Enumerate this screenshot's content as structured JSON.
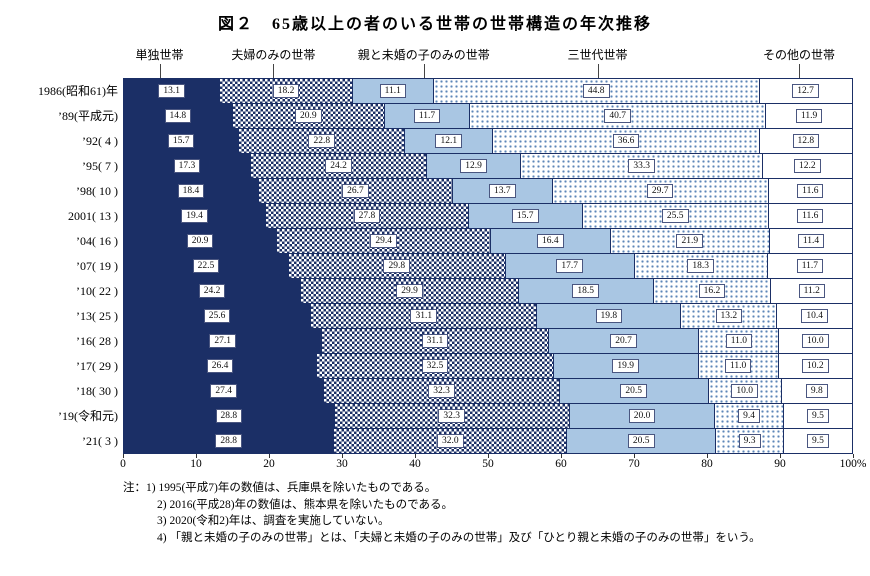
{
  "title": "図２　65歳以上の者のいる世帯の世帯構造の年次推移",
  "chart_data": {
    "type": "bar",
    "variant": "stacked-horizontal-100percent",
    "unit": "%",
    "title": "図２　65歳以上の者のいる世帯の世帯構造の年次推移",
    "xlim": [
      0,
      100
    ],
    "grid": false,
    "legend_position": "top-as-column-headers",
    "categories": [
      "1986(昭和61)年",
      "’89(平成元)",
      "’92(  4 )",
      "’95(  7 )",
      "’98( 10 )",
      "2001( 13 )",
      "’04( 16 )",
      "’07( 19 )",
      "’10( 22 )",
      "’13( 25 )",
      "’16( 28 )",
      "’17( 29 )",
      "’18( 30 )",
      "’19(令和元)",
      "’21(  3 )"
    ],
    "series": [
      {
        "name": "単独世帯",
        "pattern": "solid-navy",
        "values": [
          13.1,
          14.8,
          15.7,
          17.3,
          18.4,
          19.4,
          20.9,
          22.5,
          24.2,
          25.6,
          27.1,
          26.4,
          27.4,
          28.8,
          28.8
        ]
      },
      {
        "name": "夫婦のみの世帯",
        "pattern": "navy-white-check",
        "values": [
          18.2,
          20.9,
          22.8,
          24.2,
          26.7,
          27.8,
          29.4,
          29.8,
          29.9,
          31.1,
          31.1,
          32.5,
          32.3,
          32.3,
          32.0
        ]
      },
      {
        "name": "親と未婚の子のみの世帯",
        "pattern": "solid-lightblue",
        "values": [
          11.1,
          11.7,
          12.1,
          12.9,
          13.7,
          15.7,
          16.4,
          17.7,
          18.5,
          19.8,
          20.7,
          19.9,
          20.5,
          20.0,
          20.5
        ]
      },
      {
        "name": "三世代世帯",
        "pattern": "blue-dots-on-white",
        "values": [
          44.8,
          40.7,
          36.6,
          33.3,
          29.7,
          25.5,
          21.9,
          18.3,
          16.2,
          13.2,
          11.0,
          11.0,
          10.0,
          9.4,
          9.3
        ]
      },
      {
        "name": "その他の世帯",
        "pattern": "plain-white",
        "values": [
          12.7,
          11.9,
          12.8,
          12.2,
          11.6,
          11.6,
          11.4,
          11.7,
          11.2,
          10.4,
          10.0,
          10.2,
          9.8,
          9.5,
          9.5
        ]
      }
    ],
    "x_ticks": [
      "0",
      "10",
      "20",
      "30",
      "40",
      "50",
      "60",
      "70",
      "80",
      "90",
      "100%"
    ],
    "header_positions_pct": [
      5.0,
      20.6,
      41.2,
      65.0,
      92.6
    ],
    "colors": {
      "navy": "#1b2f66",
      "light_blue": "#a9c6e3",
      "dot_blue": "#5d86b8",
      "white": "#ffffff"
    }
  },
  "notes": [
    "注：1) 1995(平成7)年の数値は、兵庫県を除いたものである。",
    "2) 2016(平成28)年の数値は、熊本県を除いたものである。",
    "3) 2020(令和2)年は、調査を実施していない。",
    "4) 「親と未婚の子のみの世帯」とは、「夫婦と未婚の子のみの世帯」及び「ひとり親と未婚の子のみの世帯」をいう。"
  ]
}
